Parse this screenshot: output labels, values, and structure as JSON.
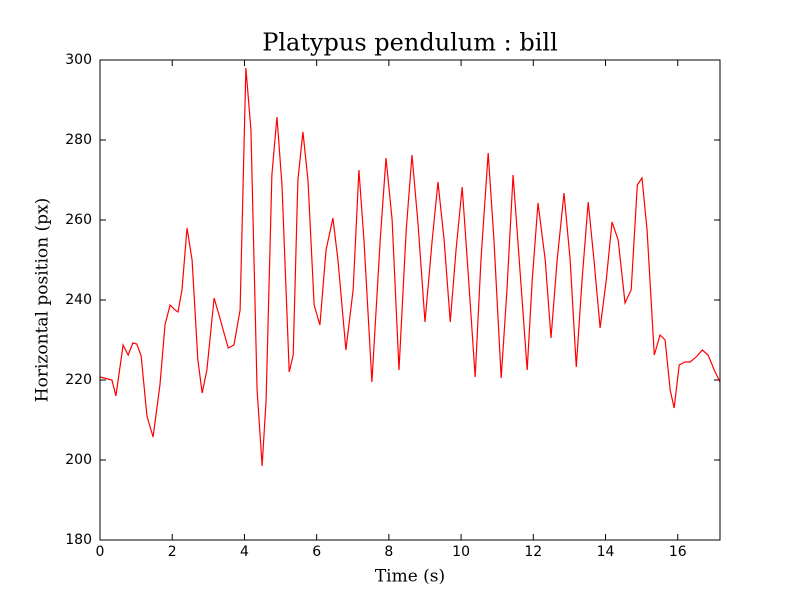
{
  "chart_data": {
    "type": "line",
    "title": "Platypus pendulum : bill",
    "x_label": "Time (s)",
    "y_label": "Horizontal position (px)",
    "xlim": [
      0,
      17.17
    ],
    "ylim": [
      180,
      300
    ],
    "xticks": [
      0,
      2,
      4,
      6,
      8,
      10,
      12,
      14,
      16
    ],
    "yticks": [
      180,
      200,
      220,
      240,
      260,
      280,
      300
    ],
    "x": [
      0,
      0.33,
      0.44,
      0.64,
      0.78,
      0.91,
      1.02,
      1.14,
      1.3,
      1.47,
      1.66,
      1.8,
      1.94,
      2.08,
      2.16,
      2.27,
      2.41,
      2.55,
      2.71,
      2.83,
      2.96,
      3.16,
      3.32,
      3.55,
      3.71,
      3.88,
      4.04,
      4.18,
      4.35,
      4.49,
      4.6,
      4.76,
      4.9,
      5.04,
      5.24,
      5.35,
      5.48,
      5.62,
      5.76,
      5.93,
      6.09,
      6.26,
      6.45,
      6.59,
      6.81,
      7.01,
      7.17,
      7.31,
      7.53,
      7.76,
      7.92,
      8.09,
      8.28,
      8.48,
      8.64,
      8.81,
      9.0,
      9.2,
      9.36,
      9.53,
      9.7,
      9.86,
      10.03,
      10.19,
      10.39,
      10.55,
      10.75,
      10.91,
      11.11,
      11.27,
      11.44,
      11.63,
      11.83,
      11.97,
      12.13,
      12.33,
      12.49,
      12.66,
      12.85,
      13.02,
      13.19,
      13.35,
      13.52,
      13.68,
      13.85,
      14.02,
      14.18,
      14.35,
      14.54,
      14.71,
      14.88,
      15.01,
      15.15,
      15.35,
      15.51,
      15.65,
      15.79,
      15.9,
      16.04,
      16.2,
      16.34,
      16.51,
      16.68,
      16.84,
      17.01,
      17.17
    ],
    "series": [
      {
        "color": "#ff0000",
        "values": [
          220.75,
          220,
          216,
          228.75,
          226.25,
          229.25,
          229,
          226,
          211,
          205.75,
          218.75,
          233.75,
          238.75,
          237.5,
          237,
          242.5,
          258,
          250,
          225,
          216.75,
          222.5,
          240.5,
          235.5,
          228,
          228.75,
          237.5,
          298,
          282.5,
          217.5,
          198.5,
          215,
          271.25,
          285.75,
          268.75,
          222,
          226.25,
          270,
          282,
          270,
          238.75,
          233.75,
          252.5,
          260.5,
          250,
          227.5,
          242.5,
          272.5,
          255,
          219.5,
          255,
          275.5,
          260,
          222.5,
          257.5,
          276.25,
          258.75,
          234.5,
          255,
          269.5,
          255,
          234.5,
          252.5,
          268.25,
          247.5,
          220.75,
          250,
          276.75,
          255,
          220.5,
          242.5,
          271.25,
          247.5,
          222.5,
          245,
          264.25,
          250,
          230.5,
          250,
          266.75,
          250,
          223.25,
          245,
          264.5,
          250,
          233,
          245,
          259.5,
          255,
          239.25,
          242.5,
          268.75,
          270.5,
          257.5,
          226.25,
          231.25,
          230,
          217.5,
          213,
          223.75,
          224.5,
          224.5,
          225.75,
          227.5,
          226.25,
          222.5,
          219.5
        ]
      }
    ]
  }
}
